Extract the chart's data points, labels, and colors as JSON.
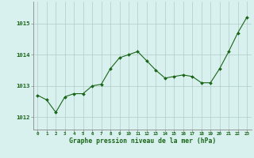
{
  "x": [
    0,
    1,
    2,
    3,
    4,
    5,
    6,
    7,
    8,
    9,
    10,
    11,
    12,
    13,
    14,
    15,
    16,
    17,
    18,
    19,
    20,
    21,
    22,
    23
  ],
  "y": [
    1012.7,
    1012.55,
    1012.15,
    1012.65,
    1012.75,
    1012.75,
    1013.0,
    1013.05,
    1013.55,
    1013.9,
    1014.0,
    1014.1,
    1013.8,
    1013.5,
    1013.25,
    1013.3,
    1013.35,
    1013.3,
    1013.1,
    1013.1,
    1013.55,
    1014.1,
    1014.7,
    1015.2
  ],
  "line_color": "#1a6618",
  "marker_color": "#1a6618",
  "bg_color": "#d8f0ee",
  "grid_color": "#b0ccc8",
  "axis_color": "#1a6618",
  "spine_color": "#888888",
  "title": "Graphe pression niveau de la mer (hPa)",
  "ylabel_ticks": [
    1012,
    1013,
    1014,
    1015
  ],
  "xlim": [
    -0.5,
    23.5
  ],
  "ylim": [
    1011.6,
    1015.7
  ]
}
